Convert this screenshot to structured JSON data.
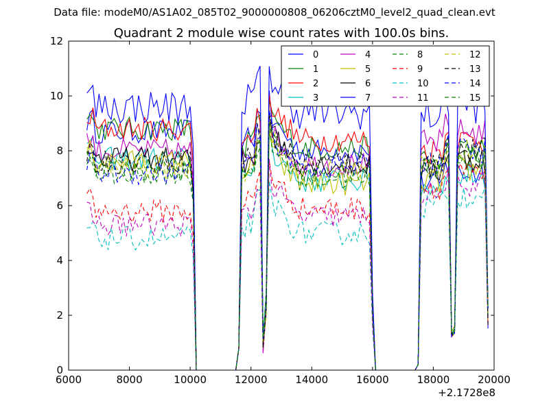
{
  "figure": {
    "suptitle": "Data file: modeM0/AS1A02_085T02_9000000808_06206cztM0_level2_quad_clean.evt",
    "offset_label": "+2.1728e8"
  },
  "chart_data": {
    "type": "line",
    "title": "Quadrant 2 module wise count rates with 100.0s bins.",
    "xlabel": "",
    "ylabel": "",
    "xlim": [
      6000,
      20000
    ],
    "ylim": [
      0,
      12
    ],
    "xticks": [
      6000,
      8000,
      10000,
      12000,
      14000,
      16000,
      18000,
      20000
    ],
    "yticks": [
      0,
      2,
      4,
      6,
      8,
      10,
      12
    ],
    "x_offset": 217280000,
    "grid": false,
    "legend": {
      "placement": "top-right",
      "columns": 4
    },
    "series": [
      {
        "name": "0",
        "color": "#0000ff",
        "dash": "solid",
        "levels": [
          8.7,
          8.5,
          8.0,
          6.8
        ]
      },
      {
        "name": "1",
        "color": "#008000",
        "dash": "solid",
        "levels": [
          8.8,
          8.4,
          8.1,
          7.6
        ]
      },
      {
        "name": "2",
        "color": "#ff0000",
        "dash": "solid",
        "levels": [
          8.8,
          8.6,
          8.4,
          8.0
        ]
      },
      {
        "name": "3",
        "color": "#00bfbf",
        "dash": "solid",
        "levels": [
          7.7,
          7.4,
          6.9,
          6.7
        ]
      },
      {
        "name": "4",
        "color": "#bf00bf",
        "dash": "solid",
        "levels": [
          8.0,
          7.8,
          7.5,
          8.3
        ]
      },
      {
        "name": "5",
        "color": "#bfbf00",
        "dash": "solid",
        "levels": [
          7.6,
          7.4,
          6.8,
          6.9
        ]
      },
      {
        "name": "6",
        "color": "#000000",
        "dash": "solid",
        "levels": [
          7.7,
          7.7,
          7.5,
          7.3
        ]
      },
      {
        "name": "7",
        "color": "#0000ff",
        "dash": "solid",
        "levels": [
          9.6,
          9.9,
          9.4,
          9.3
        ]
      },
      {
        "name": "8",
        "color": "#008000",
        "dash": "dashed",
        "levels": [
          7.2,
          7.4,
          7.0,
          7.4
        ]
      },
      {
        "name": "9",
        "color": "#ff0000",
        "dash": "dashed",
        "levels": [
          5.8,
          6.2,
          5.9,
          6.7
        ]
      },
      {
        "name": "10",
        "color": "#00bfbf",
        "dash": "dashed",
        "levels": [
          4.8,
          5.4,
          5.0,
          6.0
        ]
      },
      {
        "name": "11",
        "color": "#bf00bf",
        "dash": "dashed",
        "levels": [
          5.3,
          5.8,
          5.6,
          6.4
        ]
      },
      {
        "name": "12",
        "color": "#bfbf00",
        "dash": "dashed",
        "levels": [
          7.4,
          7.7,
          7.3,
          7.5
        ]
      },
      {
        "name": "13",
        "color": "#000000",
        "dash": "dashed",
        "levels": [
          7.6,
          7.9,
          7.6,
          7.6
        ]
      },
      {
        "name": "14",
        "color": "#0000ff",
        "dash": "dashed",
        "levels": [
          7.2,
          7.7,
          7.4,
          7.6
        ]
      },
      {
        "name": "15",
        "color": "#008000",
        "dash": "dashed",
        "levels": [
          7.3,
          7.5,
          7.2,
          7.4
        ]
      }
    ]
  }
}
